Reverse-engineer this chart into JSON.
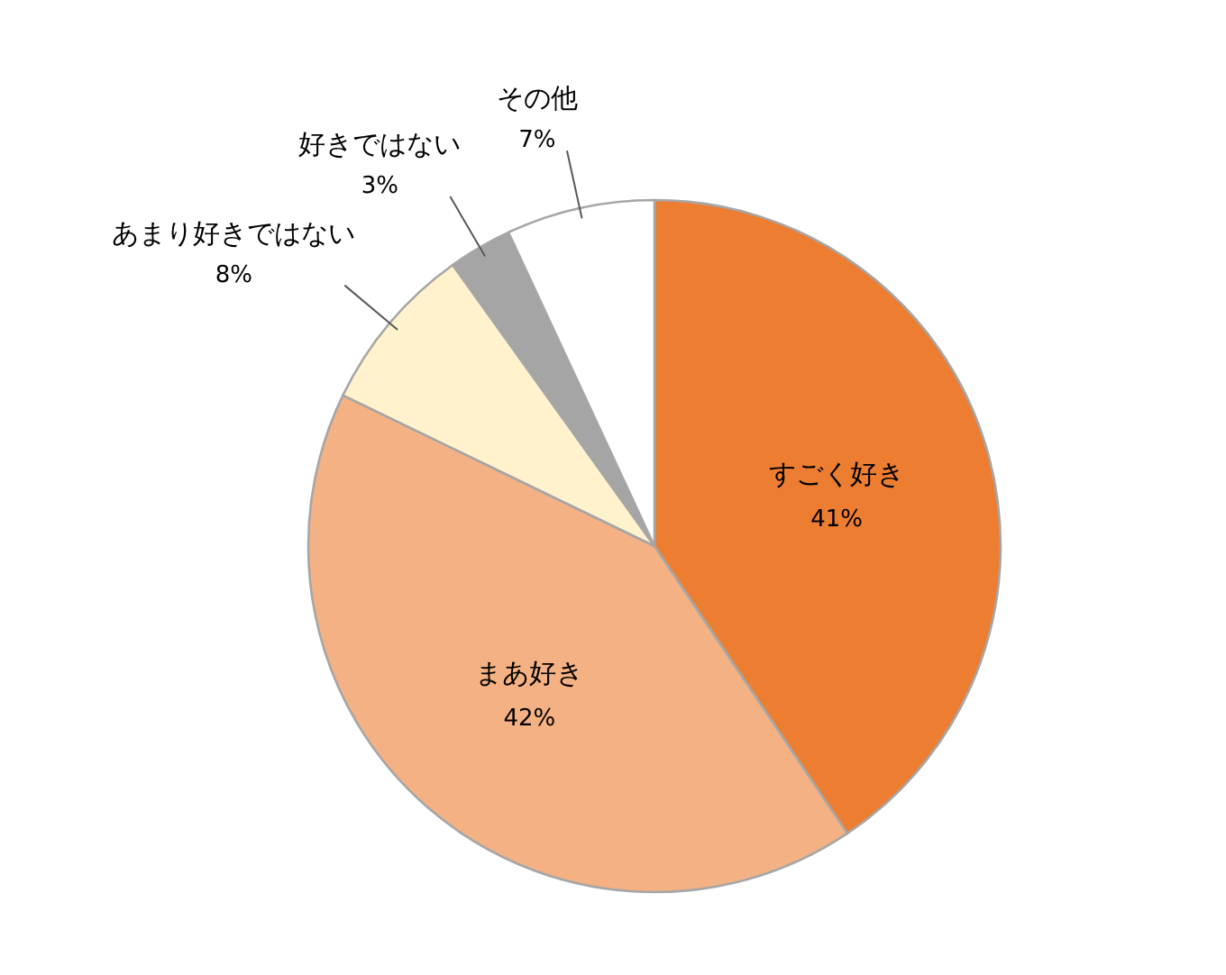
{
  "chart_data": {
    "type": "pie",
    "categories": [
      "すごく好き",
      "まあ好き",
      "あまり好きではない",
      "好きではない",
      "その他"
    ],
    "values": [
      41,
      42,
      8,
      3,
      7
    ],
    "value_labels": [
      "41%",
      "42%",
      "8%",
      "3%",
      "7%"
    ],
    "colors": [
      "#ed7d31",
      "#f4b183",
      "#fff2cc",
      "#a5a5a5",
      "#ffffff"
    ]
  }
}
